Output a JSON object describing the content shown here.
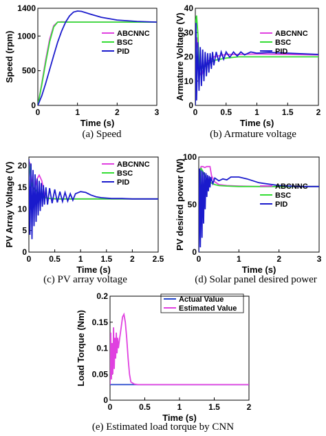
{
  "figure": {
    "captions": [
      "(a) Speed",
      "(b) Armature voltage",
      "(c) PV array voltage",
      "(d) Solar panel desired power",
      "(e) Estimated load torque by CNN"
    ]
  },
  "colors": {
    "ABCNNC": "#e040e0",
    "BSC": "#33dd33",
    "PID": "#1a1acc",
    "Actual Value": "#2244cc",
    "Estimated Value": "#e040e0"
  },
  "chart_data": [
    {
      "id": "speed",
      "type": "line",
      "caption": "(a) Speed",
      "xlabel": "Time (s)",
      "ylabel": "Speed (rpm)",
      "xlim": [
        0,
        3
      ],
      "ylim": [
        0,
        1400
      ],
      "xticks": [
        0,
        1,
        2,
        3
      ],
      "yticks": [
        0,
        500,
        1000,
        1400
      ],
      "legend": "right",
      "series": [
        {
          "name": "ABCNNC",
          "x": [
            0,
            0.1,
            0.2,
            0.3,
            0.4,
            0.5,
            0.6,
            0.8,
            1.0,
            3.0
          ],
          "y": [
            0,
            320,
            660,
            960,
            1150,
            1200,
            1205,
            1200,
            1200,
            1200
          ]
        },
        {
          "name": "BSC",
          "x": [
            0,
            0.1,
            0.2,
            0.3,
            0.4,
            0.5,
            0.6,
            3.0
          ],
          "y": [
            0,
            300,
            620,
            920,
            1130,
            1200,
            1200,
            1200
          ]
        },
        {
          "name": "PID",
          "x": [
            0,
            0.1,
            0.2,
            0.3,
            0.4,
            0.5,
            0.6,
            0.7,
            0.8,
            0.9,
            1.0,
            1.1,
            1.3,
            1.6,
            2.0,
            2.5,
            3.0
          ],
          "y": [
            0,
            140,
            320,
            520,
            720,
            910,
            1070,
            1200,
            1290,
            1345,
            1360,
            1355,
            1320,
            1270,
            1230,
            1210,
            1200
          ]
        }
      ]
    },
    {
      "id": "armature",
      "type": "line",
      "caption": "(b) Armature voltage",
      "xlabel": "Time (s)",
      "ylabel": "Armature Voltage (V)",
      "xlim": [
        0,
        2
      ],
      "ylim": [
        0,
        40
      ],
      "xticks": [
        0,
        0.5,
        1,
        1.5,
        2
      ],
      "yticks": [
        0,
        10,
        20,
        30,
        40
      ],
      "legend": "right",
      "series": [
        {
          "name": "ABCNNC",
          "x": [
            0,
            0.01,
            0.03,
            0.06,
            0.1,
            0.15,
            0.2,
            0.3,
            0.4,
            0.5,
            0.7,
            1.0,
            1.5,
            2.0
          ],
          "y": [
            0,
            22,
            28,
            14,
            12,
            16,
            18,
            20,
            20.5,
            21,
            21,
            21.2,
            21,
            20.8
          ]
        },
        {
          "name": "BSC",
          "x": [
            0,
            0.01,
            0.02,
            0.04,
            0.06,
            0.1,
            0.2,
            0.3,
            0.5,
            0.7,
            1.0,
            1.5,
            2.0
          ],
          "y": [
            0,
            35,
            37,
            30,
            16,
            15,
            17,
            18.5,
            19.5,
            20,
            20,
            20,
            20
          ]
        },
        {
          "name": "PID",
          "x": [
            0,
            0.01,
            0.02,
            0.04,
            0.06,
            0.08,
            0.1,
            0.12,
            0.14,
            0.16,
            0.18,
            0.2,
            0.22,
            0.24,
            0.26,
            0.28,
            0.3,
            0.34,
            0.38,
            0.42,
            0.46,
            0.5,
            0.56,
            0.62,
            0.68,
            0.74,
            0.8,
            0.9,
            1.0,
            1.2,
            1.5,
            2.0
          ],
          "y": [
            0,
            34,
            2,
            26,
            6,
            24,
            8,
            23,
            10,
            22,
            12,
            21.5,
            13.5,
            21.5,
            15,
            22,
            16.5,
            22,
            18,
            22,
            19,
            22,
            19.8,
            22,
            20.3,
            22,
            20.8,
            22,
            21.5,
            21.8,
            21.5,
            21
          ]
        }
      ]
    },
    {
      "id": "pv_voltage",
      "type": "line",
      "caption": "(c) PV array voltage",
      "xlabel": "Time (s)",
      "ylabel": "PV Array Voltage (V)",
      "xlim": [
        0,
        2.5
      ],
      "ylim": [
        0,
        22
      ],
      "xticks": [
        0,
        0.5,
        1,
        1.5,
        2,
        2.5
      ],
      "yticks": [
        0,
        5,
        10,
        15,
        20
      ],
      "legend": "right",
      "series": [
        {
          "name": "ABCNNC",
          "x": [
            0,
            0.02,
            0.05,
            0.08,
            0.12,
            0.16,
            0.2,
            0.25,
            0.3,
            0.35,
            0.4,
            0.5,
            0.7,
            1.0,
            1.5,
            2.0,
            2.5
          ],
          "y": [
            21,
            20.5,
            17,
            14.5,
            15,
            17,
            17.8,
            16.5,
            13.5,
            12.5,
            12.4,
            12.3,
            12.3,
            12.3,
            12.3,
            12.3,
            12.3
          ]
        },
        {
          "name": "BSC",
          "x": [
            0,
            0.02,
            0.05,
            0.08,
            0.12,
            0.16,
            0.2,
            0.25,
            0.3,
            0.4,
            0.6,
            1.0,
            1.5,
            2.0,
            2.5
          ],
          "y": [
            21,
            19,
            16,
            14.8,
            14.5,
            14,
            13.5,
            13,
            12.6,
            12.4,
            12.3,
            12.3,
            12.3,
            12.3,
            12.3
          ]
        },
        {
          "name": "PID",
          "x": [
            0,
            0.02,
            0.04,
            0.06,
            0.08,
            0.1,
            0.12,
            0.14,
            0.16,
            0.18,
            0.2,
            0.22,
            0.24,
            0.26,
            0.28,
            0.3,
            0.33,
            0.36,
            0.4,
            0.45,
            0.5,
            0.55,
            0.6,
            0.65,
            0.7,
            0.75,
            0.8,
            0.85,
            0.9,
            1.0,
            1.1,
            1.2,
            1.3,
            1.4,
            1.6,
            1.8,
            2.0,
            2.5
          ],
          "y": [
            21.5,
            4,
            20.5,
            3,
            19,
            6,
            18,
            7,
            17,
            8.5,
            16.5,
            9.5,
            16,
            10.5,
            15.5,
            11,
            15,
            11,
            14.8,
            11.3,
            14.5,
            11.5,
            14,
            11.7,
            13.8,
            11.8,
            13.5,
            12,
            13.5,
            14,
            13.8,
            13.2,
            12.8,
            12.6,
            12.4,
            12.4,
            12.3,
            12.3
          ]
        }
      ]
    },
    {
      "id": "pv_power",
      "type": "line",
      "caption": "(d) Solar panel desired power",
      "xlabel": "Time (s)",
      "ylabel": "PV desired power (W)",
      "xlim": [
        0,
        3
      ],
      "ylim": [
        0,
        100
      ],
      "xticks": [
        0,
        1,
        2,
        3
      ],
      "yticks": [
        0,
        50,
        100
      ],
      "legend": "right",
      "series": [
        {
          "name": "ABCNNC",
          "x": [
            0,
            0.03,
            0.06,
            0.1,
            0.15,
            0.2,
            0.28,
            0.32,
            0.4,
            0.5,
            0.7,
            1.0,
            1.5,
            2.0,
            2.5,
            3.0
          ],
          "y": [
            0,
            86,
            90,
            90,
            89,
            90,
            90,
            80,
            74,
            71,
            70,
            69.5,
            69,
            69,
            69,
            69
          ]
        },
        {
          "name": "BSC",
          "x": [
            0,
            0.03,
            0.06,
            0.1,
            0.15,
            0.2,
            0.3,
            0.4,
            0.5,
            0.7,
            1.0,
            2.0,
            3.0
          ],
          "y": [
            0,
            86,
            88,
            85,
            80,
            77,
            73,
            71,
            70,
            69.5,
            69,
            69,
            69
          ]
        },
        {
          "name": "PID",
          "x": [
            0,
            0.02,
            0.04,
            0.06,
            0.08,
            0.1,
            0.12,
            0.14,
            0.16,
            0.18,
            0.2,
            0.22,
            0.24,
            0.26,
            0.28,
            0.3,
            0.35,
            0.4,
            0.5,
            0.6,
            0.7,
            0.8,
            1.0,
            1.2,
            1.5,
            2.0,
            2.5,
            3.0
          ],
          "y": [
            0,
            88,
            5,
            86,
            15,
            85,
            30,
            84,
            45,
            83,
            58,
            81,
            64,
            80,
            68,
            79,
            72,
            78,
            75,
            77,
            76,
            79,
            79,
            77,
            73,
            70,
            69,
            69
          ]
        }
      ]
    },
    {
      "id": "load_torque",
      "type": "line",
      "caption": "(e) Estimated load torque by CNN",
      "xlabel": "Time (s)",
      "ylabel": "Load Torque (Nm)",
      "xlim": [
        0,
        2
      ],
      "ylim": [
        0,
        0.2
      ],
      "xticks": [
        0,
        0.5,
        1,
        1.5,
        2
      ],
      "yticks": [
        0,
        0.05,
        0.1,
        0.15,
        0.2
      ],
      "legend": "top-right",
      "series": [
        {
          "name": "Actual Value",
          "x": [
            0,
            2
          ],
          "y": [
            0.03,
            0.03
          ]
        },
        {
          "name": "Estimated Value",
          "x": [
            0,
            0.01,
            0.02,
            0.03,
            0.04,
            0.05,
            0.06,
            0.07,
            0.08,
            0.09,
            0.1,
            0.11,
            0.12,
            0.14,
            0.16,
            0.18,
            0.2,
            0.22,
            0.24,
            0.26,
            0.28,
            0.3,
            0.35,
            0.4,
            0.5,
            1.0,
            1.5,
            2.0
          ],
          "y": [
            0.03,
            0.13,
            0.04,
            0.11,
            0.05,
            0.14,
            0.06,
            0.12,
            0.08,
            0.13,
            0.09,
            0.12,
            0.1,
            0.12,
            0.14,
            0.16,
            0.165,
            0.15,
            0.12,
            0.08,
            0.05,
            0.035,
            0.031,
            0.03,
            0.03,
            0.03,
            0.03,
            0.03
          ]
        }
      ]
    }
  ]
}
